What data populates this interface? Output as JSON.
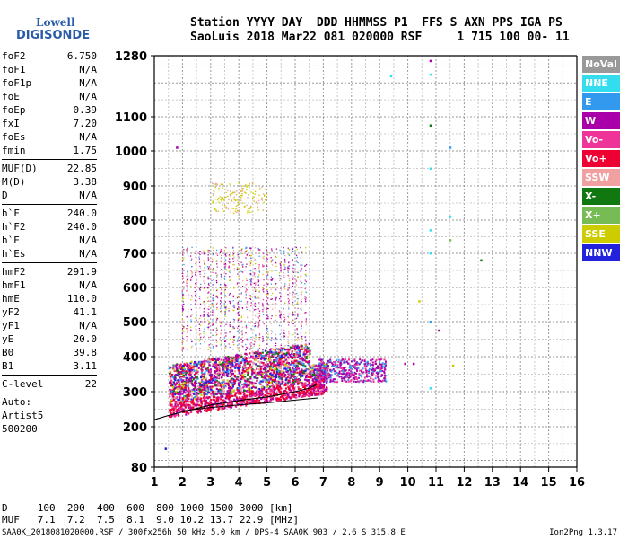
{
  "logo": {
    "brand": "Lowell",
    "product": "DIGISONDE"
  },
  "header": {
    "line1": "Station YYYY DAY  DDD HHMMSS P1  FFS S AXN PPS IGA PS",
    "line2": "SaoLuis 2018 Mar22 081 020000 RSF     1 715 100 00- 11"
  },
  "parameters": {
    "group1": [
      {
        "label": "foF2",
        "value": "6.750"
      },
      {
        "label": "foF1",
        "value": "N/A"
      },
      {
        "label": "foF1p",
        "value": "N/A"
      },
      {
        "label": "foE",
        "value": "N/A"
      },
      {
        "label": "foEp",
        "value": "0.39"
      },
      {
        "label": "fxI",
        "value": "7.20"
      },
      {
        "label": "foEs",
        "value": "N/A"
      },
      {
        "label": "fmin",
        "value": "1.75"
      }
    ],
    "group2": [
      {
        "label": "MUF(D)",
        "value": "22.85"
      },
      {
        "label": "M(D)",
        "value": "3.38"
      },
      {
        "label": "D",
        "value": "N/A"
      }
    ],
    "group3": [
      {
        "label": "h`F",
        "value": "240.0"
      },
      {
        "label": "h`F2",
        "value": "240.0"
      },
      {
        "label": "h`E",
        "value": "N/A"
      },
      {
        "label": "h`Es",
        "value": "N/A"
      }
    ],
    "group4": [
      {
        "label": "hmF2",
        "value": "291.9"
      },
      {
        "label": "hmF1",
        "value": "N/A"
      },
      {
        "label": "hmE",
        "value": "110.0"
      },
      {
        "label": "yF2",
        "value": "41.1"
      },
      {
        "label": "yF1",
        "value": "N/A"
      },
      {
        "label": "yE",
        "value": "20.0"
      },
      {
        "label": "B0",
        "value": "39.8"
      },
      {
        "label": "B1",
        "value": "3.11"
      }
    ],
    "group5": [
      {
        "label": "C-level",
        "value": "22"
      }
    ],
    "auto": [
      "Auto:",
      "Artist5",
      "500200"
    ]
  },
  "colors": {
    "NoVal": "#999999",
    "NNE": "#33ddee",
    "E": "#3399ee",
    "W": "#aa00aa",
    "Vo-": "#ee3399",
    "Vo+": "#ee0033",
    "SSW": "#f0a0a0",
    "X-": "#117711",
    "X+": "#77bb55",
    "SSE": "#cccc00",
    "NNW": "#2222dd"
  },
  "legend": [
    "NoVal",
    "NNE",
    "E",
    "W",
    "Vo-",
    "Vo+",
    "SSW",
    "X-",
    "X+",
    "SSE",
    "NNW"
  ],
  "bottom": {
    "d_row": "D     100  200  400  600  800 1000 1500 3000 [km]",
    "muf_row": "MUF   7.1  7.2  7.5  8.1  9.0 10.2 13.7 22.9 [MHz]",
    "footer": "SAA0K_2018081020000.RSF / 300fx256h 50 kHz 5.0 km / DPS-4 SAA0K 903 / 2.6 S 315.8 E",
    "version": "Ion2Png 1.3.17"
  },
  "chart_data": {
    "type": "scatter",
    "xlabel": "",
    "ylabel": "",
    "xlim": [
      1,
      16
    ],
    "ylim": [
      80,
      1280
    ],
    "x_ticks": [
      "1",
      "2",
      "3",
      "4",
      "5",
      "6",
      "7",
      "8",
      "9",
      "10",
      "11",
      "12",
      "13",
      "14",
      "15",
      "16"
    ],
    "y_ticks": [
      "80",
      "200",
      "300",
      "400",
      "500",
      "600",
      "700",
      "800",
      "900",
      "1000",
      "1100",
      "1280"
    ],
    "y_tick_values": [
      80,
      200,
      300,
      400,
      500,
      600,
      700,
      800,
      900,
      1000,
      1100,
      1280
    ],
    "grid": true,
    "trace_curve": {
      "x": [
        1.0,
        1.5,
        2.0,
        2.5,
        3.0,
        3.5,
        4.0,
        4.5,
        5.0,
        5.5,
        6.0,
        6.5,
        6.75
      ],
      "y": [
        220,
        232,
        242,
        252,
        262,
        268,
        275,
        280,
        285,
        292,
        300,
        310,
        320
      ]
    },
    "trace_lower": {
      "x": [
        2.0,
        3.0,
        4.0,
        5.0,
        6.0,
        6.8
      ],
      "y": [
        245,
        255,
        262,
        268,
        276,
        282
      ]
    },
    "scatter_sparse": [
      {
        "x": 9.4,
        "y": 1220,
        "series": "NNE"
      },
      {
        "x": 10.8,
        "y": 1225,
        "series": "NNE"
      },
      {
        "x": 10.8,
        "y": 1265,
        "series": "W"
      },
      {
        "x": 10.8,
        "y": 1075,
        "series": "X-"
      },
      {
        "x": 11.5,
        "y": 1010,
        "series": "E"
      },
      {
        "x": 10.8,
        "y": 950,
        "series": "NNE"
      },
      {
        "x": 11.5,
        "y": 810,
        "series": "NNE"
      },
      {
        "x": 10.8,
        "y": 770,
        "series": "NNE"
      },
      {
        "x": 11.5,
        "y": 740,
        "series": "X+"
      },
      {
        "x": 10.8,
        "y": 700,
        "series": "NNE"
      },
      {
        "x": 12.6,
        "y": 680,
        "series": "X-"
      },
      {
        "x": 10.4,
        "y": 560,
        "series": "SSE"
      },
      {
        "x": 10.8,
        "y": 500,
        "series": "E"
      },
      {
        "x": 11.1,
        "y": 475,
        "series": "W"
      },
      {
        "x": 10.2,
        "y": 380,
        "series": "W"
      },
      {
        "x": 11.6,
        "y": 375,
        "series": "SSE"
      },
      {
        "x": 10.8,
        "y": 310,
        "series": "NNE"
      },
      {
        "x": 1.8,
        "y": 1010,
        "series": "W"
      },
      {
        "x": 1.4,
        "y": 135,
        "series": "NNW"
      },
      {
        "x": 9.9,
        "y": 380,
        "series": "W"
      }
    ]
  }
}
